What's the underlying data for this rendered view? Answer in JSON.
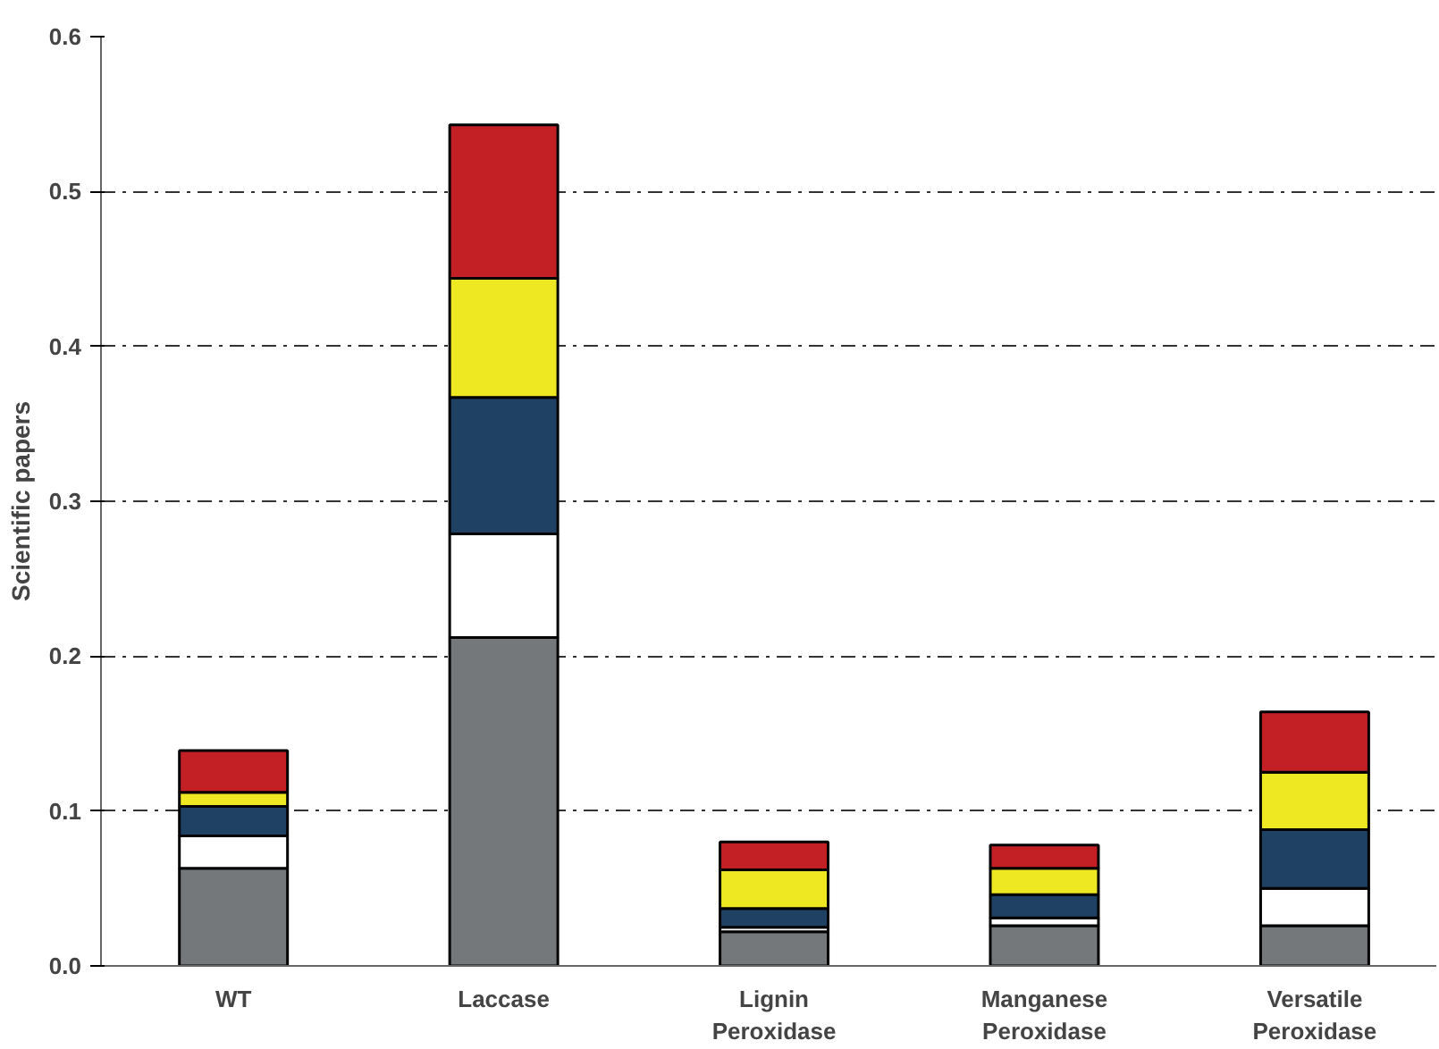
{
  "chart_data": {
    "type": "bar",
    "stacked": true,
    "ylabel": "Scientific papers",
    "categories": [
      "WT",
      "Laccase",
      "Lignin\nPeroxidase",
      "Manganese\nPeroxidase",
      "Versatile\nPeroxidase"
    ],
    "series": [
      {
        "color": "#75787b",
        "values": [
          0.063,
          0.212,
          0.022,
          0.026,
          0.026
        ]
      },
      {
        "color": "#ffffff",
        "values": [
          0.021,
          0.067,
          0.003,
          0.005,
          0.024
        ]
      },
      {
        "color": "#1f4163",
        "values": [
          0.019,
          0.088,
          0.012,
          0.015,
          0.038
        ]
      },
      {
        "color": "#eee823",
        "values": [
          0.009,
          0.077,
          0.025,
          0.017,
          0.037
        ]
      },
      {
        "color": "#c32026",
        "values": [
          0.027,
          0.099,
          0.018,
          0.015,
          0.039
        ]
      }
    ],
    "ylim": [
      0,
      0.6
    ],
    "yticks": [
      {
        "value": 0,
        "label": "0.0"
      },
      0.1,
      0.2,
      0.3,
      0.4,
      0.5,
      0.6
    ],
    "grid": "y",
    "line_style": "dashed"
  }
}
